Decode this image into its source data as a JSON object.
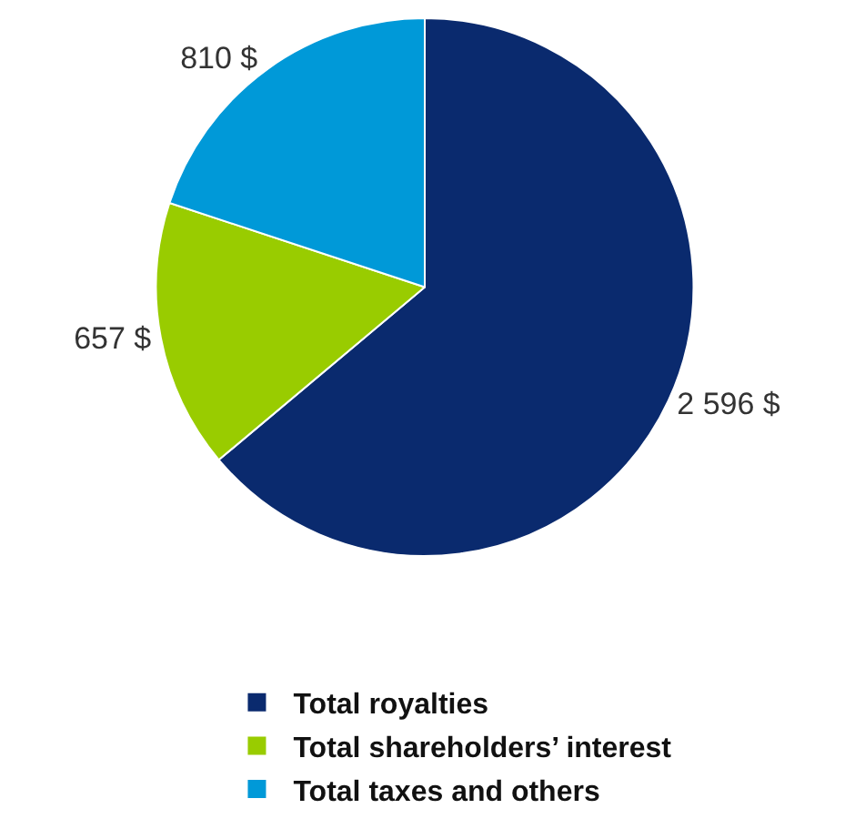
{
  "chart_data": {
    "type": "pie",
    "categories": [
      "Total royalties",
      "Total shareholders’ interest",
      "Total taxes and others"
    ],
    "values": [
      2596,
      657,
      810
    ],
    "colors": [
      "#0a2a6e",
      "#99cc00",
      "#0099d8"
    ],
    "value_labels": [
      "2 596 $",
      "657 $",
      "810 $"
    ],
    "legend": "bottom"
  }
}
